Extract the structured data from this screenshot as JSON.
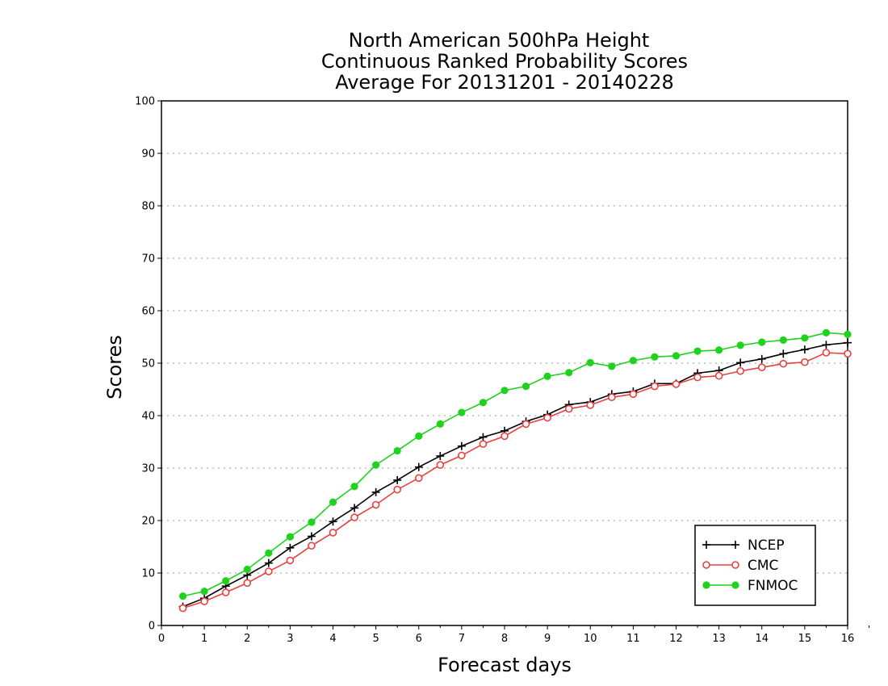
{
  "chart_data": {
    "type": "line",
    "title": [
      "North American 500hPa Height",
      "Continuous Ranked Probability Scores",
      "Average For 20131201 - 20140228"
    ],
    "xlabel": "Forecast days",
    "ylabel": "Scores",
    "xlim": [
      0,
      16
    ],
    "ylim": [
      0,
      100
    ],
    "xticks": [
      "0",
      "1",
      "2",
      "3",
      "4",
      "5",
      "6",
      "7",
      "8",
      "9",
      "10",
      "11",
      "12",
      "13",
      "14",
      "15",
      "16"
    ],
    "yticks": [
      "0",
      "10",
      "20",
      "30",
      "40",
      "50",
      "60",
      "70",
      "80",
      "90",
      "100"
    ],
    "grid": "horizontal dotted",
    "legend_position": "bottom-right",
    "x": [
      0.5,
      1,
      1.5,
      2,
      2.5,
      3,
      3.5,
      4,
      4.5,
      5,
      5.5,
      6,
      6.5,
      7,
      7.5,
      8,
      8.5,
      9,
      9.5,
      10,
      10.5,
      11,
      11.5,
      12,
      12.5,
      13,
      13.5,
      14,
      14.5,
      15,
      15.5,
      16
    ],
    "series": [
      {
        "name": "NCEP",
        "color": "#000000",
        "marker": "plus",
        "values": [
          3.6,
          5.2,
          7.5,
          9.6,
          11.9,
          14.8,
          17.0,
          19.8,
          22.4,
          25.4,
          27.7,
          30.2,
          32.3,
          34.2,
          35.9,
          37.1,
          38.9,
          40.2,
          42.1,
          42.6,
          44.1,
          44.6,
          46.1,
          46.1,
          48.1,
          48.6,
          50.1,
          50.8,
          51.8,
          52.6,
          53.5,
          53.9
        ]
      },
      {
        "name": "CMC",
        "color": "#e8403f",
        "marker": "open-circle",
        "values": [
          3.3,
          4.6,
          6.3,
          8.1,
          10.3,
          12.4,
          15.2,
          17.7,
          20.6,
          23.0,
          25.9,
          28.1,
          30.6,
          32.4,
          34.6,
          36.1,
          38.4,
          39.6,
          41.3,
          42.0,
          43.5,
          44.1,
          45.6,
          46.0,
          47.3,
          47.6,
          48.5,
          49.2,
          49.9,
          50.2,
          52.0,
          51.8
        ]
      },
      {
        "name": "FNMOC",
        "color": "#1ed21e",
        "marker": "filled-circle",
        "values": [
          5.6,
          6.5,
          8.5,
          10.7,
          13.8,
          16.9,
          19.7,
          23.5,
          26.5,
          30.6,
          33.3,
          36.1,
          38.4,
          40.6,
          42.5,
          44.8,
          45.6,
          47.5,
          48.2,
          50.1,
          49.4,
          50.5,
          51.2,
          51.4,
          52.3,
          52.5,
          53.4,
          54.0,
          54.4,
          54.8,
          55.8,
          55.5
        ]
      }
    ]
  }
}
